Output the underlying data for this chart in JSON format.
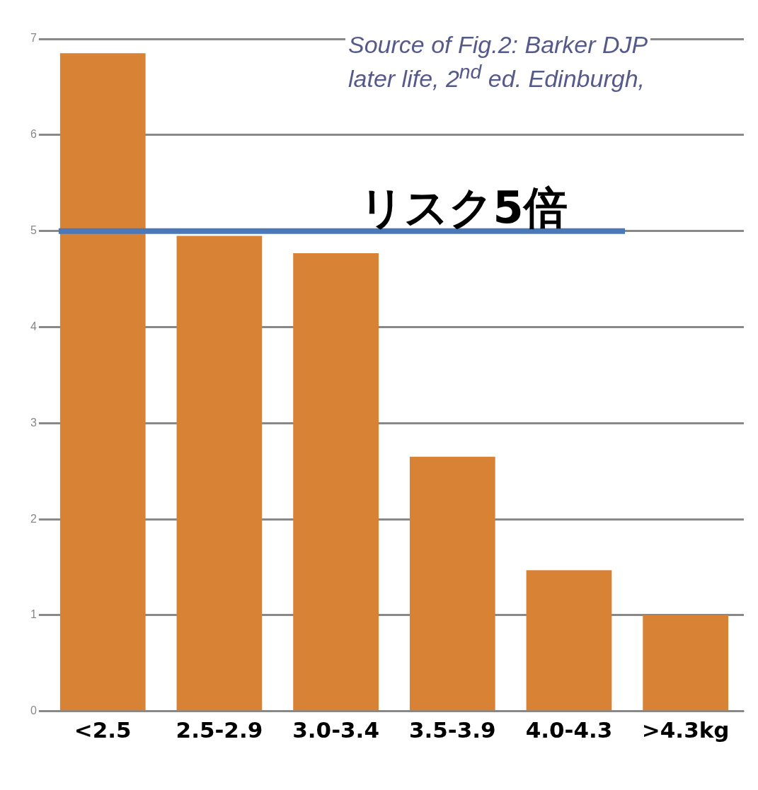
{
  "chart_data": {
    "type": "bar",
    "categories": [
      "<2.5",
      "2.5-2.9",
      "3.0-3.4",
      "3.5-3.9",
      "4.0-4.3",
      ">4.3kg"
    ],
    "values": [
      6.85,
      4.95,
      4.77,
      2.65,
      1.47,
      1.0
    ],
    "color": "#d88236",
    "ylim": [
      0,
      7
    ],
    "yticks": [
      0,
      1,
      2,
      3,
      4,
      5,
      6,
      7
    ],
    "grid": "y",
    "ref_lines": [
      {
        "axis": "y",
        "value": 5,
        "label": "リスク5倍",
        "color": "#4a78b8"
      }
    ],
    "annotations": [
      "Source of Fig.2: Barker DJP",
      "later life, 2$^{nd}$ ed. Edinburgh,"
    ]
  }
}
